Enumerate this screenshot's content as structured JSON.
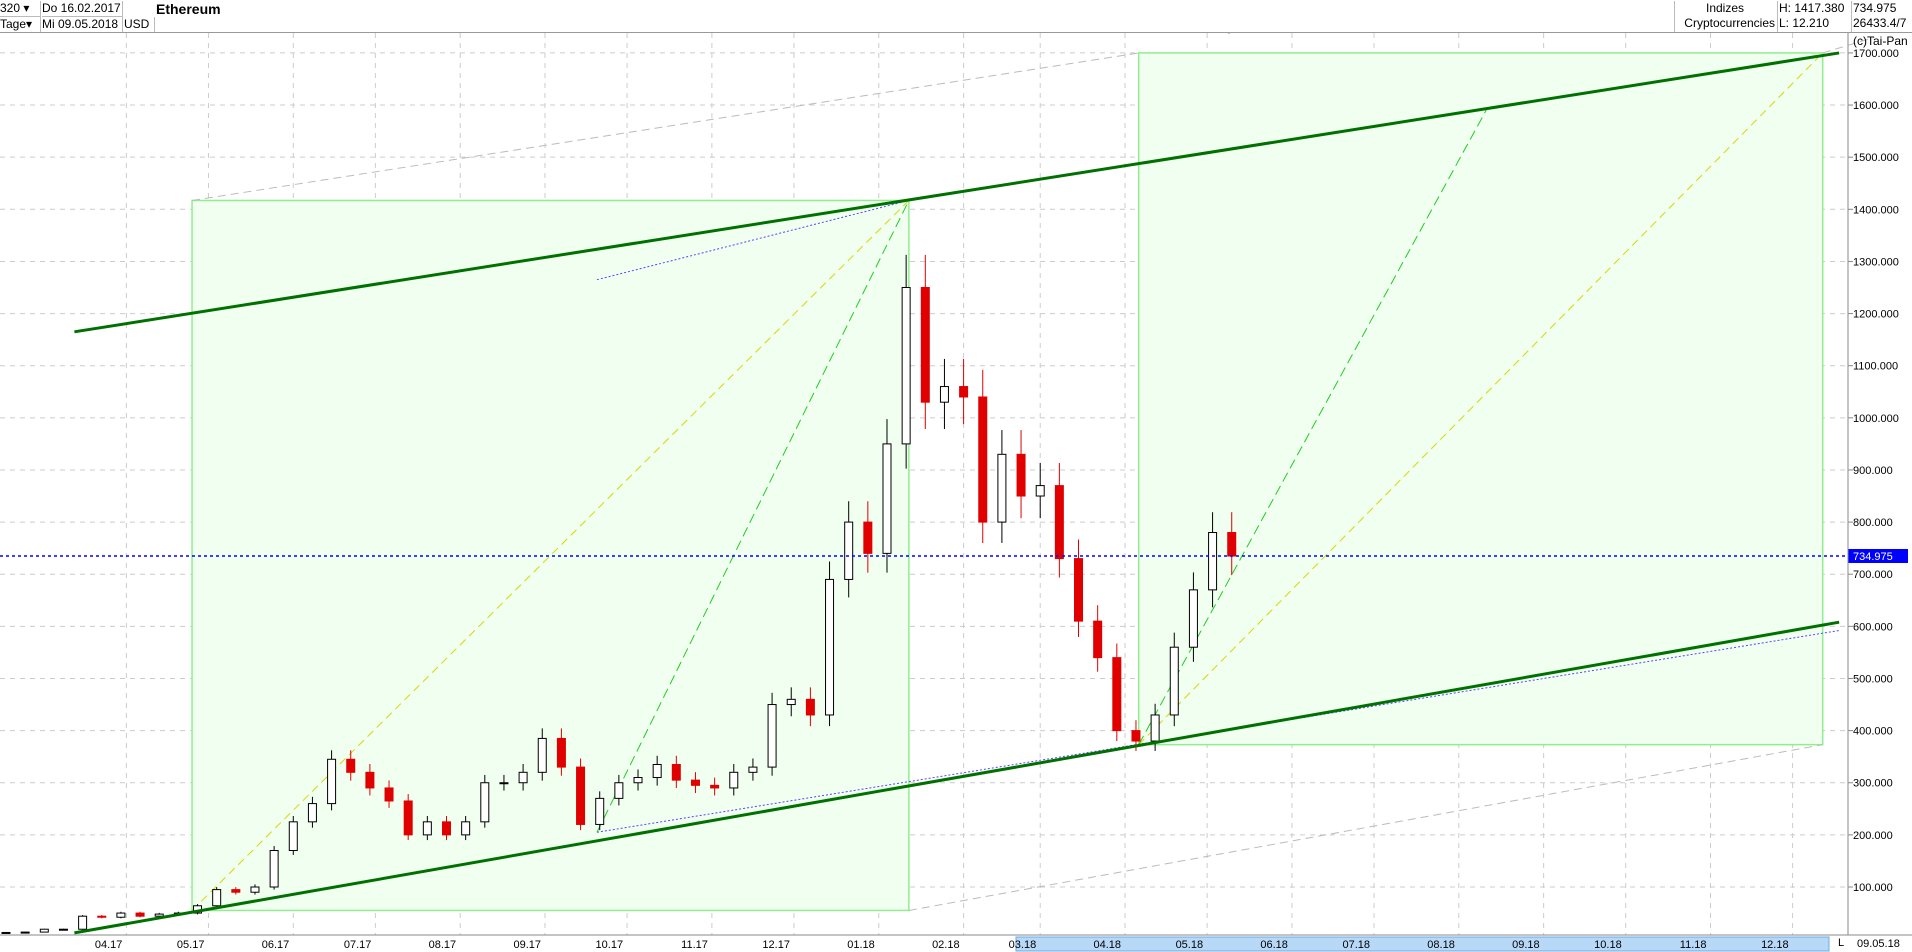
{
  "header": {
    "period_count": "320",
    "period_unit": "Tage",
    "date_from": "Do 16.02.2017",
    "date_to": "Mi 09.05.2018",
    "currency": "USD",
    "title": "Ethereum",
    "category": "Indizes",
    "subcategory": "Cryptocurrencies",
    "high": "H: 1417.380",
    "low": "L: 12.210",
    "last": "734.975",
    "volume": "26433.4/7",
    "copyright": "(c)Tai-Pan"
  },
  "bottom_axis": {
    "end_date": "09.05.18",
    "scale_marker": "L"
  },
  "chart_data": {
    "type": "candlestick",
    "title": "Ethereum",
    "ylim": [
      0,
      1750
    ],
    "y_ticks": [
      "100.000",
      "200.000",
      "300.000",
      "400.000",
      "500.000",
      "600.000",
      "700.000",
      "800.000",
      "900.000",
      "1000.000",
      "1100.000",
      "1200.000",
      "1300.000",
      "1400.000",
      "1500.000",
      "1600.000",
      "1700.000"
    ],
    "x_range": [
      "2017-02-16",
      "2018-12-31"
    ],
    "x_ticks": [
      {
        "date": "2017-04-01",
        "label": "04.17"
      },
      {
        "date": "2017-05-01",
        "label": "05.17"
      },
      {
        "date": "2017-06-01",
        "label": "06.17"
      },
      {
        "date": "2017-07-01",
        "label": "07.17"
      },
      {
        "date": "2017-08-01",
        "label": "08.17"
      },
      {
        "date": "2017-09-01",
        "label": "09.17"
      },
      {
        "date": "2017-10-01",
        "label": "10.17"
      },
      {
        "date": "2017-11-01",
        "label": "11.17"
      },
      {
        "date": "2017-12-01",
        "label": "12.17"
      },
      {
        "date": "2018-01-01",
        "label": "01.18"
      },
      {
        "date": "2018-02-01",
        "label": "02.18"
      },
      {
        "date": "2018-03-01",
        "label": "03.18"
      },
      {
        "date": "2018-04-01",
        "label": "04.18"
      },
      {
        "date": "2018-05-01",
        "label": "05.18"
      },
      {
        "date": "2018-06-01",
        "label": "06.18"
      },
      {
        "date": "2018-07-01",
        "label": "07.18"
      },
      {
        "date": "2018-08-01",
        "label": "08.18"
      },
      {
        "date": "2018-09-01",
        "label": "09.18"
      },
      {
        "date": "2018-10-01",
        "label": "10.18"
      },
      {
        "date": "2018-11-01",
        "label": "11.18"
      },
      {
        "date": "2018-12-01",
        "label": "12.18"
      }
    ],
    "grid": true,
    "candle_start": "2017-02-16",
    "candle_step_days": 7,
    "closes": [
      12.8,
      13.5,
      19,
      19,
      44,
      42,
      50,
      44,
      48,
      50,
      64,
      95,
      90,
      100,
      170,
      225,
      260,
      345,
      320,
      290,
      265,
      200,
      225,
      200,
      225,
      300,
      300,
      320,
      385,
      330,
      220,
      270,
      300,
      310,
      335,
      305,
      295,
      290,
      320,
      330,
      450,
      460,
      430,
      690,
      800,
      740,
      950,
      1250,
      1030,
      1060,
      1040,
      800,
      930,
      850,
      870,
      730,
      610,
      540,
      400,
      380,
      430,
      560,
      670,
      780,
      734.975
    ],
    "up_color": "#000000",
    "down_color": "#e00000",
    "last_price": 734.975,
    "last_price_label": "734.975",
    "last_price_color": "#0000ff",
    "channel_lines": [
      {
        "from": [
          "2017-03-13",
          1165
        ],
        "to": [
          "2018-12-18",
          1700
        ]
      },
      {
        "from": [
          "2017-03-13",
          12
        ],
        "to": [
          "2018-12-18",
          608
        ]
      }
    ],
    "channel_color": "#007000",
    "parallel_dotted": [
      {
        "from": [
          "2017-09-20",
          205
        ],
        "to": [
          "2018-12-18",
          592
        ]
      },
      {
        "from": [
          "2017-09-20",
          1265
        ],
        "to": [
          "2018-01-12",
          1417
        ]
      }
    ],
    "boxes": [
      {
        "from": [
          "2017-04-25",
          55
        ],
        "to": [
          "2018-01-12",
          1417
        ]
      },
      {
        "from": [
          "2018-04-06",
          373
        ],
        "to": [
          "2018-12-12",
          1700
        ]
      }
    ],
    "box_color": "#90ee90",
    "dashed_green": [
      {
        "from": [
          "2017-09-20",
          205
        ],
        "to": [
          "2018-01-12",
          1417
        ]
      },
      {
        "from": [
          "2018-04-06",
          373
        ],
        "to": [
          "2018-08-11",
          1590
        ]
      }
    ],
    "dashed_yellow": [
      {
        "from": [
          "2017-04-25",
          55
        ],
        "to": [
          "2018-01-12",
          1417
        ]
      },
      {
        "from": [
          "2018-04-06",
          373
        ],
        "to": [
          "2018-12-12",
          1700
        ]
      }
    ],
    "dashed_gray": [
      {
        "from": [
          "2017-04-25",
          1417
        ],
        "to": [
          "2018-04-06",
          1700
        ]
      },
      {
        "from": [
          "2018-01-12",
          55
        ],
        "to": [
          "2018-12-12",
          373
        ]
      },
      {
        "from": [
          "2018-12-12",
          1700
        ],
        "to": [
          "2018-12-31",
          1730
        ]
      }
    ]
  }
}
